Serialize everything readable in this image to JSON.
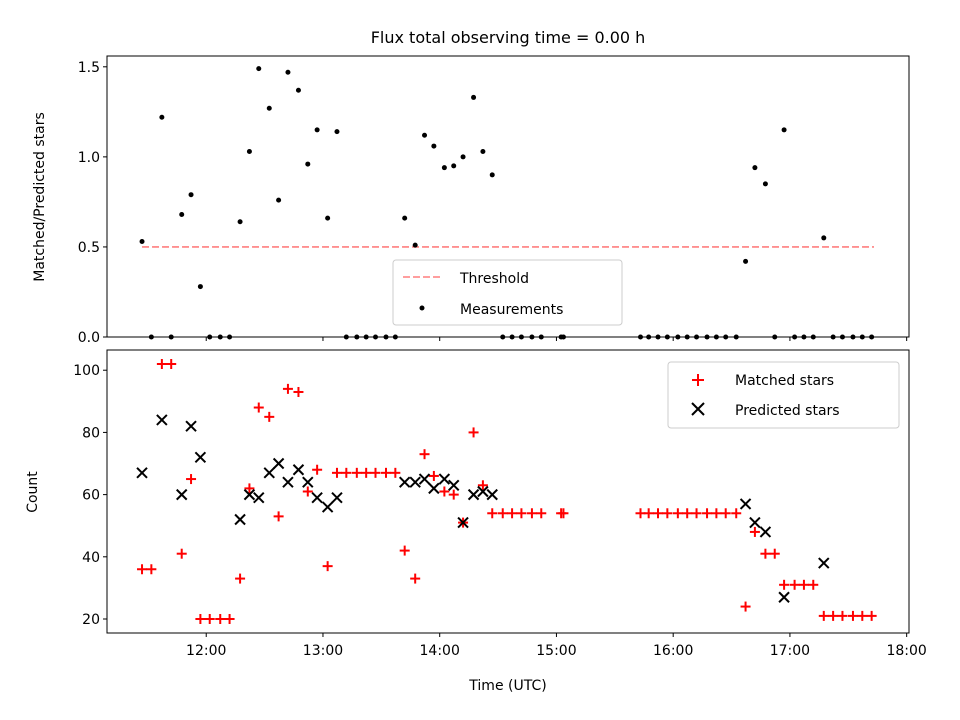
{
  "chart_data": [
    {
      "type": "scatter",
      "title": "Flux total observing time = 0.00 h",
      "xlabel": "",
      "ylabel": "Matched/Predicted stars",
      "xlim": [
        11.15,
        18.02
      ],
      "ylim": [
        0.0,
        1.56
      ],
      "x_tick_values": [
        12,
        13,
        14,
        15,
        16,
        17,
        18
      ],
      "y_tick_values": [
        0.0,
        0.5,
        1.0,
        1.5
      ],
      "y_tick_labels": [
        "0.0",
        "0.5",
        "1.0",
        "1.5"
      ],
      "legend": {
        "position": "lower center",
        "entries": [
          "Threshold",
          "Measurements"
        ]
      },
      "series": [
        {
          "name": "Threshold",
          "kind": "line",
          "color": "#ff7f7f",
          "dash": true,
          "x": [
            11.45,
            17.72
          ],
          "y": [
            0.5,
            0.5
          ]
        },
        {
          "name": "Measurements",
          "kind": "dot",
          "color": "#000000",
          "x": [
            11.45,
            11.53,
            11.62,
            11.7,
            11.79,
            11.87,
            11.95,
            12.03,
            12.12,
            12.2,
            12.29,
            12.37,
            12.45,
            12.54,
            12.62,
            12.7,
            12.79,
            12.87,
            12.95,
            13.04,
            13.12,
            13.2,
            13.29,
            13.37,
            13.45,
            13.54,
            13.62,
            13.7,
            13.79,
            13.87,
            13.95,
            14.04,
            14.12,
            14.2,
            14.29,
            14.37,
            14.45,
            14.54,
            14.62,
            14.7,
            14.79,
            14.87,
            15.04,
            15.06,
            15.72,
            15.79,
            15.87,
            15.95,
            16.04,
            16.12,
            16.2,
            16.29,
            16.37,
            16.45,
            16.54,
            16.62,
            16.7,
            16.79,
            16.87,
            16.95,
            17.04,
            17.12,
            17.2,
            17.29,
            17.37,
            17.45,
            17.54,
            17.62,
            17.7
          ],
          "y": [
            0.53,
            0.0,
            1.22,
            0.0,
            0.68,
            0.79,
            0.28,
            0.0,
            0.0,
            0.0,
            0.64,
            1.03,
            1.49,
            1.27,
            0.76,
            1.47,
            1.37,
            0.96,
            1.15,
            0.66,
            1.14,
            0.0,
            0.0,
            0.0,
            0.0,
            0.0,
            0.0,
            0.66,
            0.51,
            1.12,
            1.06,
            0.94,
            0.95,
            1.0,
            1.33,
            1.03,
            0.9,
            0.0,
            0.0,
            0.0,
            0.0,
            0.0,
            0.0,
            0.0,
            0.0,
            0.0,
            0.0,
            0.0,
            0.0,
            0.0,
            0.0,
            0.0,
            0.0,
            0.0,
            0.0,
            0.42,
            0.94,
            0.85,
            0.0,
            1.15,
            0.0,
            0.0,
            0.0,
            0.55,
            0.0,
            0.0,
            0.0,
            0.0,
            0.0
          ]
        }
      ]
    },
    {
      "type": "scatter",
      "title": "",
      "xlabel": "Time (UTC)",
      "ylabel": "Count",
      "xlim": [
        11.15,
        18.02
      ],
      "ylim": [
        15.5,
        106.5
      ],
      "x_tick_values": [
        12,
        13,
        14,
        15,
        16,
        17,
        18
      ],
      "x_tick_labels": [
        "12:00",
        "13:00",
        "14:00",
        "15:00",
        "16:00",
        "17:00",
        "18:00"
      ],
      "y_tick_values": [
        20,
        40,
        60,
        80,
        100
      ],
      "y_tick_labels": [
        "20",
        "40",
        "60",
        "80",
        "100"
      ],
      "legend": {
        "position": "upper right",
        "entries": [
          "Matched stars",
          "Predicted stars"
        ]
      },
      "series": [
        {
          "name": "Matched stars",
          "kind": "plus",
          "color": "#ff0000",
          "x": [
            11.45,
            11.53,
            11.62,
            11.7,
            11.79,
            11.87,
            11.95,
            12.03,
            12.12,
            12.2,
            12.29,
            12.37,
            12.45,
            12.54,
            12.62,
            12.7,
            12.79,
            12.87,
            12.95,
            13.04,
            13.12,
            13.2,
            13.29,
            13.37,
            13.45,
            13.54,
            13.62,
            13.7,
            13.79,
            13.87,
            13.95,
            14.04,
            14.12,
            14.2,
            14.29,
            14.37,
            14.45,
            14.54,
            14.62,
            14.7,
            14.79,
            14.87,
            15.04,
            15.06,
            15.72,
            15.79,
            15.87,
            15.95,
            16.04,
            16.12,
            16.2,
            16.29,
            16.37,
            16.45,
            16.54,
            16.62,
            16.7,
            16.79,
            16.87,
            16.95,
            17.04,
            17.12,
            17.2,
            17.29,
            17.37,
            17.45,
            17.54,
            17.62,
            17.7
          ],
          "y": [
            36,
            36,
            102,
            102,
            41,
            65,
            20,
            20,
            20,
            20,
            33,
            62,
            88,
            85,
            53,
            94,
            93,
            61,
            68,
            37,
            67,
            67,
            67,
            67,
            67,
            67,
            67,
            42,
            33,
            73,
            66,
            61,
            60,
            51,
            80,
            63,
            54,
            54,
            54,
            54,
            54,
            54,
            54,
            54,
            54,
            54,
            54,
            54,
            54,
            54,
            54,
            54,
            54,
            54,
            54,
            24,
            48,
            41,
            41,
            31,
            31,
            31,
            31,
            21,
            21,
            21,
            21,
            21,
            21
          ]
        },
        {
          "name": "Predicted stars",
          "kind": "cross",
          "color": "#000000",
          "x": [
            11.45,
            11.62,
            11.79,
            11.87,
            11.95,
            12.29,
            12.37,
            12.45,
            12.54,
            12.62,
            12.7,
            12.79,
            12.87,
            12.95,
            13.04,
            13.12,
            13.7,
            13.79,
            13.87,
            13.95,
            14.04,
            14.12,
            14.2,
            14.29,
            14.37,
            14.45,
            16.62,
            16.7,
            16.79,
            16.95,
            17.29
          ],
          "y": [
            67,
            84,
            60,
            82,
            72,
            52,
            60,
            59,
            67,
            70,
            64,
            68,
            64,
            59,
            56,
            59,
            64,
            64,
            65,
            62,
            65,
            63,
            51,
            60,
            61,
            60,
            57,
            51,
            48,
            27,
            38
          ]
        }
      ]
    }
  ]
}
